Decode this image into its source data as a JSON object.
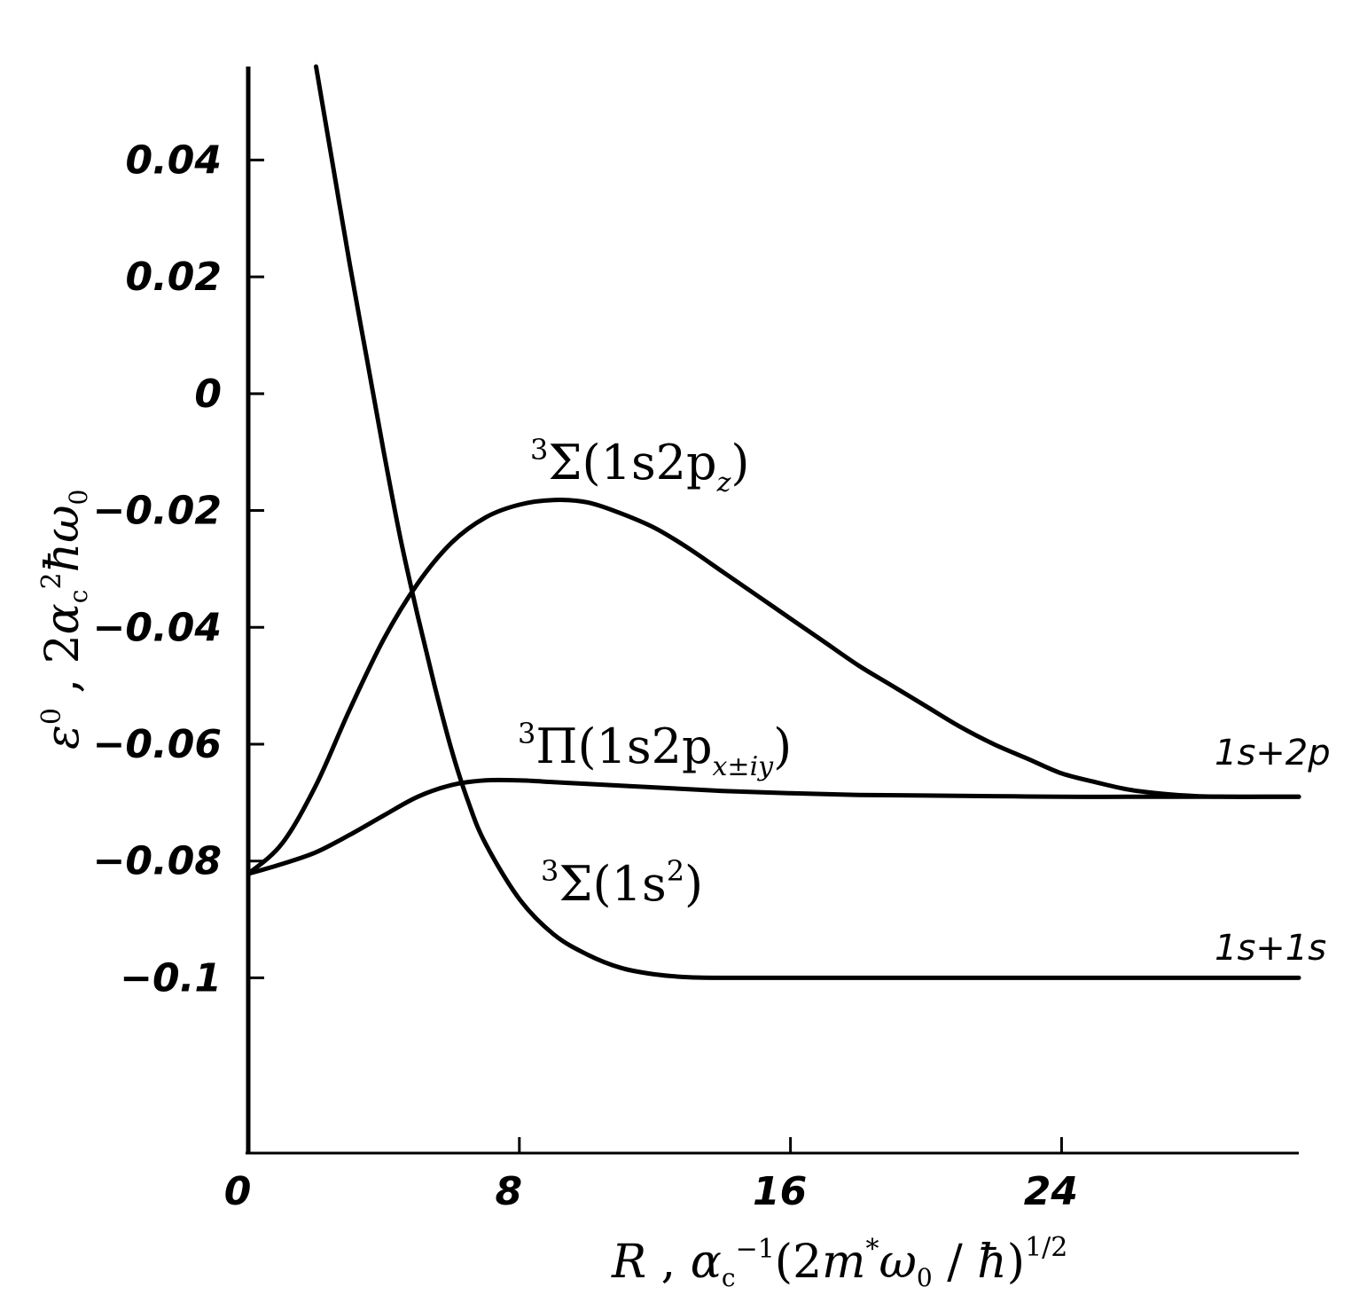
{
  "chart_data": {
    "type": "line",
    "xlabel": "R ,  α_c^-1 (2m* ω_0 / ħ)^1/2",
    "ylabel": "ε^0 , 2α_c^2 ħω_0",
    "xlim": [
      0,
      31
    ],
    "ylim": [
      -0.13,
      0.056
    ],
    "x_ticks": [
      {
        "value": 0,
        "label": "0"
      },
      {
        "value": 8,
        "label": "8"
      },
      {
        "value": 16,
        "label": "16"
      },
      {
        "value": 24,
        "label": "24"
      }
    ],
    "y_ticks": [
      {
        "value": 0.04,
        "label": "0.04"
      },
      {
        "value": 0.02,
        "label": "0.02"
      },
      {
        "value": 0,
        "label": "0"
      },
      {
        "value": -0.02,
        "label": "-0.02"
      },
      {
        "value": -0.04,
        "label": "-0.04"
      },
      {
        "value": -0.06,
        "label": "-0.06"
      },
      {
        "value": -0.08,
        "label": "-0.08"
      },
      {
        "value": -0.1,
        "label": "-0.1"
      }
    ],
    "grid": false,
    "series": [
      {
        "name": "³Σ(1s2p_z)",
        "x": [
          0,
          1,
          2,
          3,
          4,
          5,
          6,
          7,
          8,
          9,
          10,
          11,
          12,
          13,
          14,
          15,
          16,
          17,
          18,
          19,
          20,
          21,
          22,
          23,
          24,
          25,
          26,
          27,
          28,
          29,
          30,
          31
        ],
        "y": [
          -0.0822,
          -0.077,
          -0.067,
          -0.054,
          -0.042,
          -0.0325,
          -0.0255,
          -0.0212,
          -0.019,
          -0.0182,
          -0.0186,
          -0.0205,
          -0.023,
          -0.0265,
          -0.0305,
          -0.0345,
          -0.0385,
          -0.0425,
          -0.0465,
          -0.05,
          -0.0535,
          -0.057,
          -0.06,
          -0.0625,
          -0.065,
          -0.0665,
          -0.0678,
          -0.0685,
          -0.0689,
          -0.069,
          -0.069,
          -0.069
        ]
      },
      {
        "name": "³Π(1s2p_x±iy)",
        "x": [
          0,
          1,
          2,
          3,
          4,
          5,
          6,
          7,
          8,
          9,
          10,
          12,
          14,
          16,
          18,
          20,
          22,
          24,
          26,
          28,
          30,
          31
        ],
        "y": [
          -0.0822,
          -0.0805,
          -0.0785,
          -0.0755,
          -0.0722,
          -0.069,
          -0.067,
          -0.0662,
          -0.0662,
          -0.0665,
          -0.0668,
          -0.0674,
          -0.068,
          -0.0684,
          -0.0687,
          -0.0688,
          -0.0689,
          -0.069,
          -0.069,
          -0.069,
          -0.069,
          -0.069
        ]
      },
      {
        "name": "³Σ(1s²)",
        "x": [
          2,
          2.5,
          3,
          3.5,
          4,
          4.5,
          5,
          5.5,
          6,
          6.5,
          7,
          8,
          9,
          10,
          11,
          12,
          13,
          14,
          16,
          18,
          20,
          24,
          28,
          31
        ],
        "y": [
          0.056,
          0.039,
          0.022,
          0.006,
          -0.01,
          -0.025,
          -0.038,
          -0.05,
          -0.061,
          -0.07,
          -0.077,
          -0.0865,
          -0.0925,
          -0.096,
          -0.0983,
          -0.0994,
          -0.0999,
          -0.1,
          -0.1,
          -0.1,
          -0.1,
          -0.1,
          -0.1,
          -0.1
        ]
      }
    ],
    "curve_labels": [
      {
        "sup": "3",
        "main": "Σ(1s2p",
        "sub": "z",
        "close": ")"
      },
      {
        "sup": "3",
        "main": "Π(1s2p",
        "sub": "x±iy",
        "close": ")"
      },
      {
        "sup": "3",
        "main": "Σ(1s",
        "supInner": "2",
        "close": ")"
      }
    ],
    "asymptote_labels": [
      "1s+2p",
      "1s+1s"
    ]
  }
}
